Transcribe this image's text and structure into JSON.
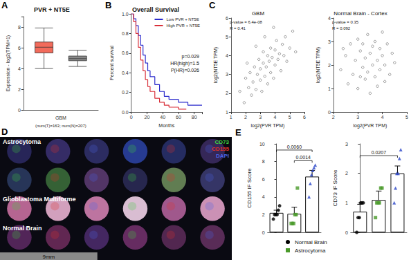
{
  "chart_data": [
    {
      "panel": "A",
      "type": "boxplot",
      "title": "PVR + NT5E",
      "categories": [
        "GBM"
      ],
      "xlabel": "(num(T)=163; num(N)=207)",
      "ylabel": "Expression - log2(TPM+1)",
      "ylim": [
        0,
        9
      ],
      "yticks": [
        0,
        2,
        4,
        6,
        8
      ],
      "series": [
        {
          "color": "#f26b5b",
          "values": [
            [
              4.0,
              5.5,
              6.05,
              6.55,
              7.9
            ]
          ]
        },
        {
          "color": "#8a8a8a",
          "values": [
            [
              4.2,
              4.75,
              4.95,
              5.2,
              5.75
            ]
          ]
        }
      ]
    },
    {
      "panel": "B",
      "type": "line",
      "title": "Overall Survival",
      "xlabel": "Months",
      "ylabel": "Percent survival",
      "xlim": [
        0,
        90
      ],
      "xticks": [
        0,
        20,
        40,
        60,
        80
      ],
      "ylim": [
        0,
        1
      ],
      "yticks": [
        {
          "value": 0,
          "label": "0.0"
        },
        0.2,
        0.4,
        0.6,
        0.8,
        {
          "value": 1,
          "label": "1.0"
        }
      ],
      "legend": "top-right",
      "line_style": "step",
      "annotations": [
        "p=0.029",
        "HR(high)=1.5",
        "P(HR)=0.026"
      ],
      "series": [
        {
          "name": "Low PVR + NT5E",
          "color": "#2b2bcc",
          "x": [
            0,
            3,
            6,
            9,
            12,
            15,
            18,
            21,
            24,
            30,
            36,
            42,
            48,
            60,
            72,
            90
          ],
          "values": [
            1,
            0.95,
            0.88,
            0.78,
            0.68,
            0.58,
            0.5,
            0.42,
            0.36,
            0.28,
            0.21,
            0.16,
            0.13,
            0.1,
            0.07,
            0.07
          ]
        },
        {
          "name": "High PVR + NT5E",
          "color": "#d9303a",
          "x": [
            0,
            3,
            6,
            9,
            12,
            15,
            18,
            21,
            24,
            30,
            36,
            42,
            48,
            60,
            70
          ],
          "values": [
            1,
            0.92,
            0.8,
            0.66,
            0.53,
            0.42,
            0.33,
            0.26,
            0.21,
            0.14,
            0.1,
            0.07,
            0.05,
            0.03,
            0.03
          ]
        }
      ]
    },
    {
      "panel": "C",
      "type": "scatter",
      "title": "GBM",
      "xlabel": "log2(PVR TPM)",
      "ylabel": "log2(NT5E TPM)",
      "xlim": [
        1,
        6
      ],
      "xticks": [
        1,
        2,
        3,
        4,
        5,
        6
      ],
      "ylim": [
        1,
        6
      ],
      "yticks": [
        1,
        2,
        3,
        4,
        5,
        6
      ],
      "annotations": [
        "p-value = 6.4e-08",
        "R = 0.41"
      ],
      "color": "#555555",
      "marker": "open_circle",
      "points": [
        [
          1.6,
          2.1
        ],
        [
          1.9,
          1.5
        ],
        [
          2.0,
          2.8
        ],
        [
          2.2,
          2.3
        ],
        [
          2.3,
          3.1
        ],
        [
          2.4,
          1.9
        ],
        [
          2.5,
          2.6
        ],
        [
          2.6,
          3.4
        ],
        [
          2.7,
          2.2
        ],
        [
          2.8,
          3.0
        ],
        [
          2.9,
          3.8
        ],
        [
          3.0,
          2.7
        ],
        [
          3.0,
          3.3
        ],
        [
          3.1,
          2.1
        ],
        [
          3.2,
          3.6
        ],
        [
          3.2,
          4.2
        ],
        [
          3.3,
          2.9
        ],
        [
          3.4,
          3.4
        ],
        [
          3.5,
          4.0
        ],
        [
          3.5,
          2.5
        ],
        [
          3.6,
          3.7
        ],
        [
          3.7,
          4.4
        ],
        [
          3.7,
          3.1
        ],
        [
          3.8,
          3.9
        ],
        [
          3.9,
          2.8
        ],
        [
          4.0,
          4.3
        ],
        [
          4.0,
          3.5
        ],
        [
          4.1,
          4.8
        ],
        [
          4.2,
          3.8
        ],
        [
          4.3,
          4.1
        ],
        [
          4.4,
          3.2
        ],
        [
          4.5,
          4.6
        ],
        [
          4.6,
          4.0
        ],
        [
          4.7,
          5.0
        ],
        [
          4.8,
          3.7
        ],
        [
          5.0,
          4.4
        ],
        [
          5.2,
          5.3
        ],
        [
          5.4,
          4.2
        ],
        [
          2.1,
          3.6
        ],
        [
          3.3,
          5.0
        ],
        [
          2.7,
          4.5
        ],
        [
          3.9,
          5.5
        ]
      ]
    },
    {
      "type": "scatter",
      "title": "Normal Brain - Cortex",
      "xlabel": "log2(PVR TPM)",
      "ylabel": "log2(NT5E TPM)",
      "xlim": [
        2,
        5
      ],
      "xticks": [
        2,
        3,
        4,
        5
      ],
      "ylim": [
        0,
        4
      ],
      "yticks": [
        0,
        1,
        2,
        3,
        4
      ],
      "annotations": [
        "p-value = 0.35",
        "R = 0.092"
      ],
      "color": "#555555",
      "marker": "open_circle",
      "points": [
        [
          2.3,
          1.8
        ],
        [
          2.5,
          2.4
        ],
        [
          2.6,
          1.2
        ],
        [
          2.7,
          2.9
        ],
        [
          2.8,
          1.6
        ],
        [
          2.9,
          2.2
        ],
        [
          3.0,
          3.1
        ],
        [
          3.0,
          1.0
        ],
        [
          3.1,
          2.6
        ],
        [
          3.2,
          1.9
        ],
        [
          3.2,
          2.9
        ],
        [
          3.3,
          1.4
        ],
        [
          3.3,
          2.3
        ],
        [
          3.4,
          3.3
        ],
        [
          3.4,
          1.7
        ],
        [
          3.5,
          2.5
        ],
        [
          3.5,
          0.8
        ],
        [
          3.6,
          2.0
        ],
        [
          3.6,
          2.8
        ],
        [
          3.7,
          1.5
        ],
        [
          3.7,
          3.0
        ],
        [
          3.8,
          2.2
        ],
        [
          3.8,
          1.1
        ],
        [
          3.9,
          2.7
        ],
        [
          3.9,
          1.8
        ],
        [
          4.0,
          2.4
        ],
        [
          4.0,
          3.4
        ],
        [
          4.1,
          1.3
        ],
        [
          4.1,
          2.0
        ],
        [
          4.2,
          2.9
        ],
        [
          4.3,
          1.6
        ],
        [
          4.4,
          2.5
        ],
        [
          4.5,
          2.1
        ],
        [
          2.4,
          2.7
        ],
        [
          3.1,
          1.5
        ]
      ]
    },
    {
      "panel": "D",
      "type": "image",
      "channels": [
        {
          "name": "CD73",
          "color": "#3fd13f"
        },
        {
          "name": "CD155",
          "color": "#e0302a"
        },
        {
          "name": "DAPI",
          "color": "#4a63e8"
        }
      ],
      "sections": [
        {
          "label": "Astrocytoma",
          "rows": 2
        },
        {
          "label": "Glioblastoma Multiforme",
          "rows": 1
        },
        {
          "label": "Normal Brain",
          "rows": 1
        }
      ],
      "columns": 6,
      "scale_bar": "9mm"
    },
    {
      "panel": "E",
      "type": "bar",
      "ylabel": "CD155 IF Score",
      "ylim": [
        0,
        10
      ],
      "yticks": [
        0,
        2,
        4,
        6,
        8,
        10
      ],
      "categories": [
        null,
        null,
        null
      ],
      "values": [
        2.2,
        2.1,
        6.3
      ],
      "errors": [
        0.3,
        0.75,
        0.7
      ],
      "colors": [
        "#000000",
        "#4a9a2a",
        "#2a46c8"
      ],
      "markers": [
        "circle",
        "square",
        "triangle"
      ],
      "points": [
        [
          1.5,
          2,
          2,
          2,
          2.5,
          3
        ],
        [
          1,
          1,
          1,
          2,
          2,
          5
        ],
        [
          4,
          5.5,
          6.5,
          7,
          7.3,
          7.6
        ]
      ],
      "comparisons": [
        {
          "from": 0,
          "to": 2,
          "y": 9.3,
          "label": "0.0060"
        },
        {
          "from": 1,
          "to": 2,
          "y": 8.1,
          "label": "0.0014"
        }
      ]
    },
    {
      "type": "bar",
      "ylabel": "CD73 IF Score",
      "ylim": [
        0,
        3
      ],
      "yticks": [
        0,
        1,
        2,
        3
      ],
      "categories": [
        null,
        null,
        null
      ],
      "values": [
        0.7,
        1.1,
        2.0
      ],
      "errors": [
        0.25,
        0.3,
        0.25
      ],
      "colors": [
        "#000000",
        "#4a9a2a",
        "#2a46c8"
      ],
      "markers": [
        "circle",
        "square",
        "triangle"
      ],
      "points": [
        [
          0,
          0.5,
          0.5,
          1,
          1,
          1
        ],
        [
          0.5,
          1,
          1,
          1,
          1.5,
          1.5
        ],
        [
          1,
          1.5,
          2,
          2,
          2.5,
          2.8
        ]
      ],
      "comparisons": [
        {
          "from": 0,
          "to": 2,
          "y": 2.6,
          "label": "0.0207"
        }
      ]
    },
    {
      "type": "legend",
      "entries": [
        {
          "name": "Normal Brain",
          "color": "#000000",
          "marker": "circle"
        },
        {
          "name": "Astrocytoma",
          "color": "#4a9a2a",
          "marker": "square"
        }
      ]
    }
  ]
}
